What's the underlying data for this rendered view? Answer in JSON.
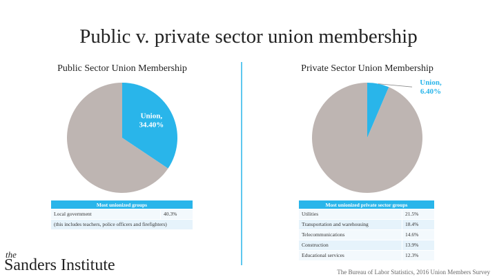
{
  "title": "Public v. private sector union membership",
  "chart_data": [
    {
      "type": "pie",
      "title": "Public Sector Union Membership",
      "categories": [
        "Union,",
        null
      ],
      "values": [
        34.4,
        65.6
      ],
      "value_labels": [
        "34.40%",
        null
      ],
      "colors": [
        "#29b5ea",
        "#beb5b2"
      ],
      "label_position": "inside"
    },
    {
      "type": "pie",
      "title": "Private Sector Union Membership",
      "categories": [
        "Union,",
        null
      ],
      "values": [
        6.4,
        93.6
      ],
      "value_labels": [
        "6.40%",
        null
      ],
      "colors": [
        "#29b5ea",
        "#beb5b2"
      ],
      "label_position": "outside"
    }
  ],
  "tables": [
    {
      "header": "Most unionized groups",
      "rows": [
        [
          "Local government",
          "40.3%"
        ],
        [
          "(this includes teachers, police officers and firefighters)"
        ]
      ]
    },
    {
      "header": "Most unionized private sector groups",
      "rows": [
        [
          "Utilities",
          "21.5%"
        ],
        [
          "Transportation and warehousing",
          "18.4%"
        ],
        [
          "Telecommunications",
          "14.6%"
        ],
        [
          "Construction",
          "13.9%"
        ],
        [
          "Educational services",
          "12.3%"
        ]
      ]
    }
  ],
  "logo": {
    "small": "the",
    "name": "Sanders Institute"
  },
  "source": "The Bureau of Labor Statistics, 2016 Union Members Survey"
}
